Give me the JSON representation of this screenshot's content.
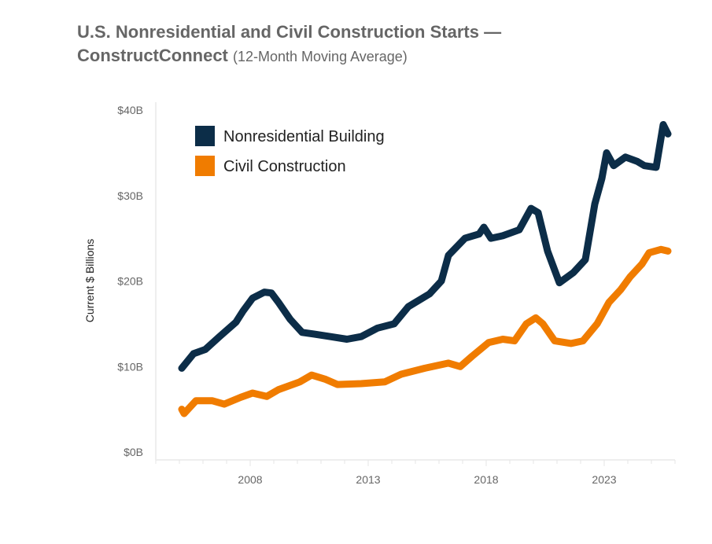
{
  "chart_data": {
    "type": "line",
    "title": "U.S. Nonresidential and Civil Construction Starts —",
    "title_line2": "ConstructConnect",
    "subtitle": "(12-Month Moving Average)",
    "ylabel": "Current $ Billions",
    "xlabel": "",
    "xlim": [
      2004,
      2026
    ],
    "ylim": [
      0,
      40
    ],
    "xticks": [
      2008,
      2013,
      2018,
      2023
    ],
    "xtick_labels": [
      "2008",
      "2013",
      "2018",
      "2023"
    ],
    "yticks": [
      0,
      10,
      20,
      30,
      40
    ],
    "ytick_labels": [
      "$0B",
      "$10B",
      "$20B",
      "$30B",
      "$40B"
    ],
    "grid": false,
    "legend_position": "top-left",
    "series": [
      {
        "name": "Nonresidential Building",
        "color": "#0c2d48",
        "x": [
          2005.1,
          2005.6,
          2006.1,
          2006.7,
          2007.4,
          2007.7,
          2008.1,
          2008.6,
          2008.9,
          2009.2,
          2009.7,
          2010.2,
          2010.7,
          2011.4,
          2012.1,
          2012.7,
          2013.4,
          2014.1,
          2014.7,
          2015.6,
          2016.1,
          2016.4,
          2017.1,
          2017.7,
          2017.9,
          2018.2,
          2018.7,
          2019.4,
          2019.9,
          2020.2,
          2020.6,
          2021.1,
          2021.7,
          2022.2,
          2022.6,
          2022.9,
          2023.1,
          2023.4,
          2023.9,
          2024.4,
          2024.7,
          2025.2,
          2025.5,
          2025.7
        ],
        "y": [
          9.8,
          11.5,
          12,
          13.5,
          15.2,
          16.5,
          18,
          18.7,
          18.6,
          17.5,
          15.5,
          14,
          13.8,
          13.5,
          13.2,
          13.5,
          14.5,
          15,
          17,
          18.5,
          20,
          23,
          25,
          25.5,
          26.3,
          25,
          25.3,
          26,
          28.5,
          28,
          23.5,
          19.8,
          21,
          22.5,
          29,
          32,
          35,
          33.5,
          34.5,
          34,
          33.5,
          33.3,
          38.3,
          37.2
        ]
      },
      {
        "name": "Civil Construction",
        "color": "#f07c00",
        "x": [
          2005.1,
          2005.2,
          2005.7,
          2006.4,
          2006.9,
          2007.6,
          2008.1,
          2008.7,
          2009.2,
          2010.1,
          2010.6,
          2011.2,
          2011.7,
          2012.7,
          2013.7,
          2014.4,
          2015.4,
          2016.4,
          2016.9,
          2017.4,
          2018.1,
          2018.7,
          2019.2,
          2019.7,
          2020.1,
          2020.4,
          2020.9,
          2021.6,
          2022.1,
          2022.7,
          2023.2,
          2023.7,
          2024.1,
          2024.6,
          2024.9,
          2025.4,
          2025.7
        ],
        "y": [
          5.0,
          4.5,
          6,
          6,
          5.6,
          6.4,
          6.9,
          6.5,
          7.3,
          8.2,
          9.0,
          8.5,
          7.9,
          8.0,
          8.2,
          9.1,
          9.8,
          10.4,
          10,
          11.2,
          12.8,
          13.2,
          13,
          15,
          15.7,
          15,
          13,
          12.7,
          13,
          15,
          17.5,
          19,
          20.5,
          22,
          23.3,
          23.7,
          23.5
        ]
      }
    ]
  }
}
